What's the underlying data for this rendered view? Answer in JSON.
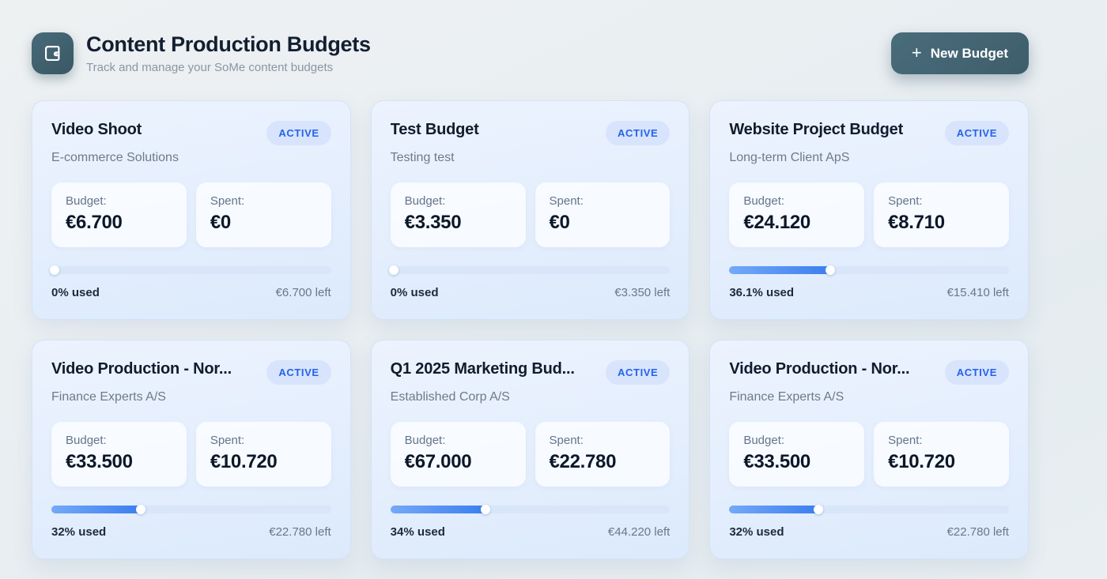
{
  "header": {
    "title": "Content Production Budgets",
    "subtitle": "Track and manage your SoMe content budgets",
    "new_budget_label": "New Budget",
    "plus_glyph": "+"
  },
  "labels": {
    "budget": "Budget:",
    "spent": "Spent:"
  },
  "colors": {
    "accent_teal": "#44626f",
    "badge_bg": "#d7e4fc",
    "badge_text": "#2563eb",
    "progress_track": "#d9e6fa",
    "progress_fill_start": "#74a9f7",
    "progress_fill_end": "#3b7ef0"
  },
  "cards": [
    {
      "title": "Video Shoot",
      "status": "ACTIVE",
      "client": "E-commerce Solutions",
      "budget": "€6.700",
      "spent": "€0",
      "percent_used": "0% used",
      "percent_value": 0,
      "left": "€6.700 left"
    },
    {
      "title": "Test Budget",
      "status": "ACTIVE",
      "client": "Testing test",
      "budget": "€3.350",
      "spent": "€0",
      "percent_used": "0% used",
      "percent_value": 0,
      "left": "€3.350 left"
    },
    {
      "title": "Website Project Budget",
      "status": "ACTIVE",
      "client": "Long-term Client ApS",
      "budget": "€24.120",
      "spent": "€8.710",
      "percent_used": "36.1% used",
      "percent_value": 36.1,
      "left": "€15.410 left"
    },
    {
      "title": "Video Production - Nor...",
      "status": "ACTIVE",
      "client": "Finance Experts A/S",
      "budget": "€33.500",
      "spent": "€10.720",
      "percent_used": "32% used",
      "percent_value": 32,
      "left": "€22.780 left"
    },
    {
      "title": "Q1 2025 Marketing Bud...",
      "status": "ACTIVE",
      "client": "Established Corp A/S",
      "budget": "€67.000",
      "spent": "€22.780",
      "percent_used": "34% used",
      "percent_value": 34,
      "left": "€44.220 left"
    },
    {
      "title": "Video Production - Nor...",
      "status": "ACTIVE",
      "client": "Finance Experts A/S",
      "budget": "€33.500",
      "spent": "€10.720",
      "percent_used": "32% used",
      "percent_value": 32,
      "left": "€22.780 left"
    }
  ]
}
